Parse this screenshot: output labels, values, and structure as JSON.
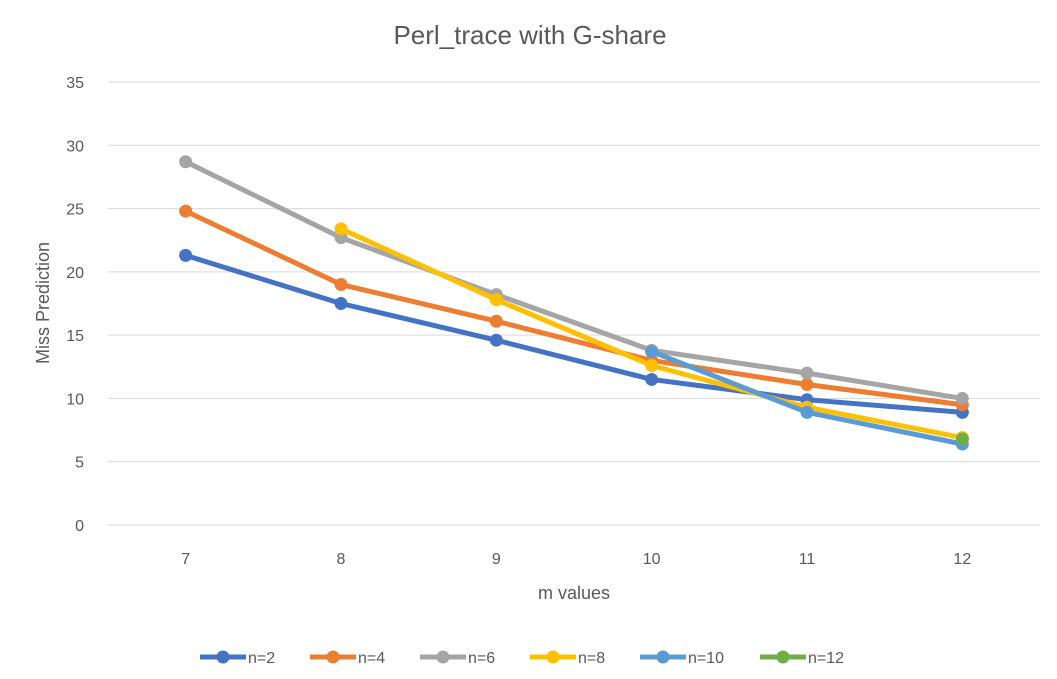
{
  "chart_data": {
    "type": "line",
    "title": "Perl_trace with G-share",
    "xlabel": "m values",
    "ylabel": "Miss Prediction",
    "x": [
      7,
      8,
      9,
      10,
      11,
      12
    ],
    "x_tick_labels": [
      "7",
      "8",
      "9",
      "10",
      "11",
      "12"
    ],
    "ylim": [
      0,
      35
    ],
    "y_ticks": [
      0,
      5,
      10,
      15,
      20,
      25,
      30,
      35
    ],
    "grid": true,
    "legend_position": "bottom",
    "series": [
      {
        "name": "n=2",
        "color": "#4472c4",
        "x": [
          7,
          8,
          9,
          10,
          11,
          12
        ],
        "values": [
          21.3,
          17.5,
          14.6,
          11.5,
          9.9,
          8.9
        ]
      },
      {
        "name": "n=4",
        "color": "#ed7d31",
        "x": [
          7,
          8,
          9,
          10,
          11,
          12
        ],
        "values": [
          24.8,
          19.0,
          16.1,
          13.0,
          11.1,
          9.5
        ]
      },
      {
        "name": "n=6",
        "color": "#a5a5a5",
        "x": [
          7,
          8,
          9,
          10,
          11,
          12
        ],
        "values": [
          28.7,
          22.7,
          18.2,
          13.8,
          12.0,
          10.0
        ]
      },
      {
        "name": "n=8",
        "color": "#ffc000",
        "x": [
          8,
          9,
          10,
          11,
          12
        ],
        "values": [
          23.4,
          17.8,
          12.6,
          9.3,
          6.9
        ]
      },
      {
        "name": "n=10",
        "color": "#5b9bd5",
        "x": [
          10,
          11,
          12
        ],
        "values": [
          13.7,
          8.9,
          6.4
        ]
      },
      {
        "name": "n=12",
        "color": "#70ad47",
        "x": [
          12
        ],
        "values": [
          6.8
        ]
      }
    ]
  }
}
